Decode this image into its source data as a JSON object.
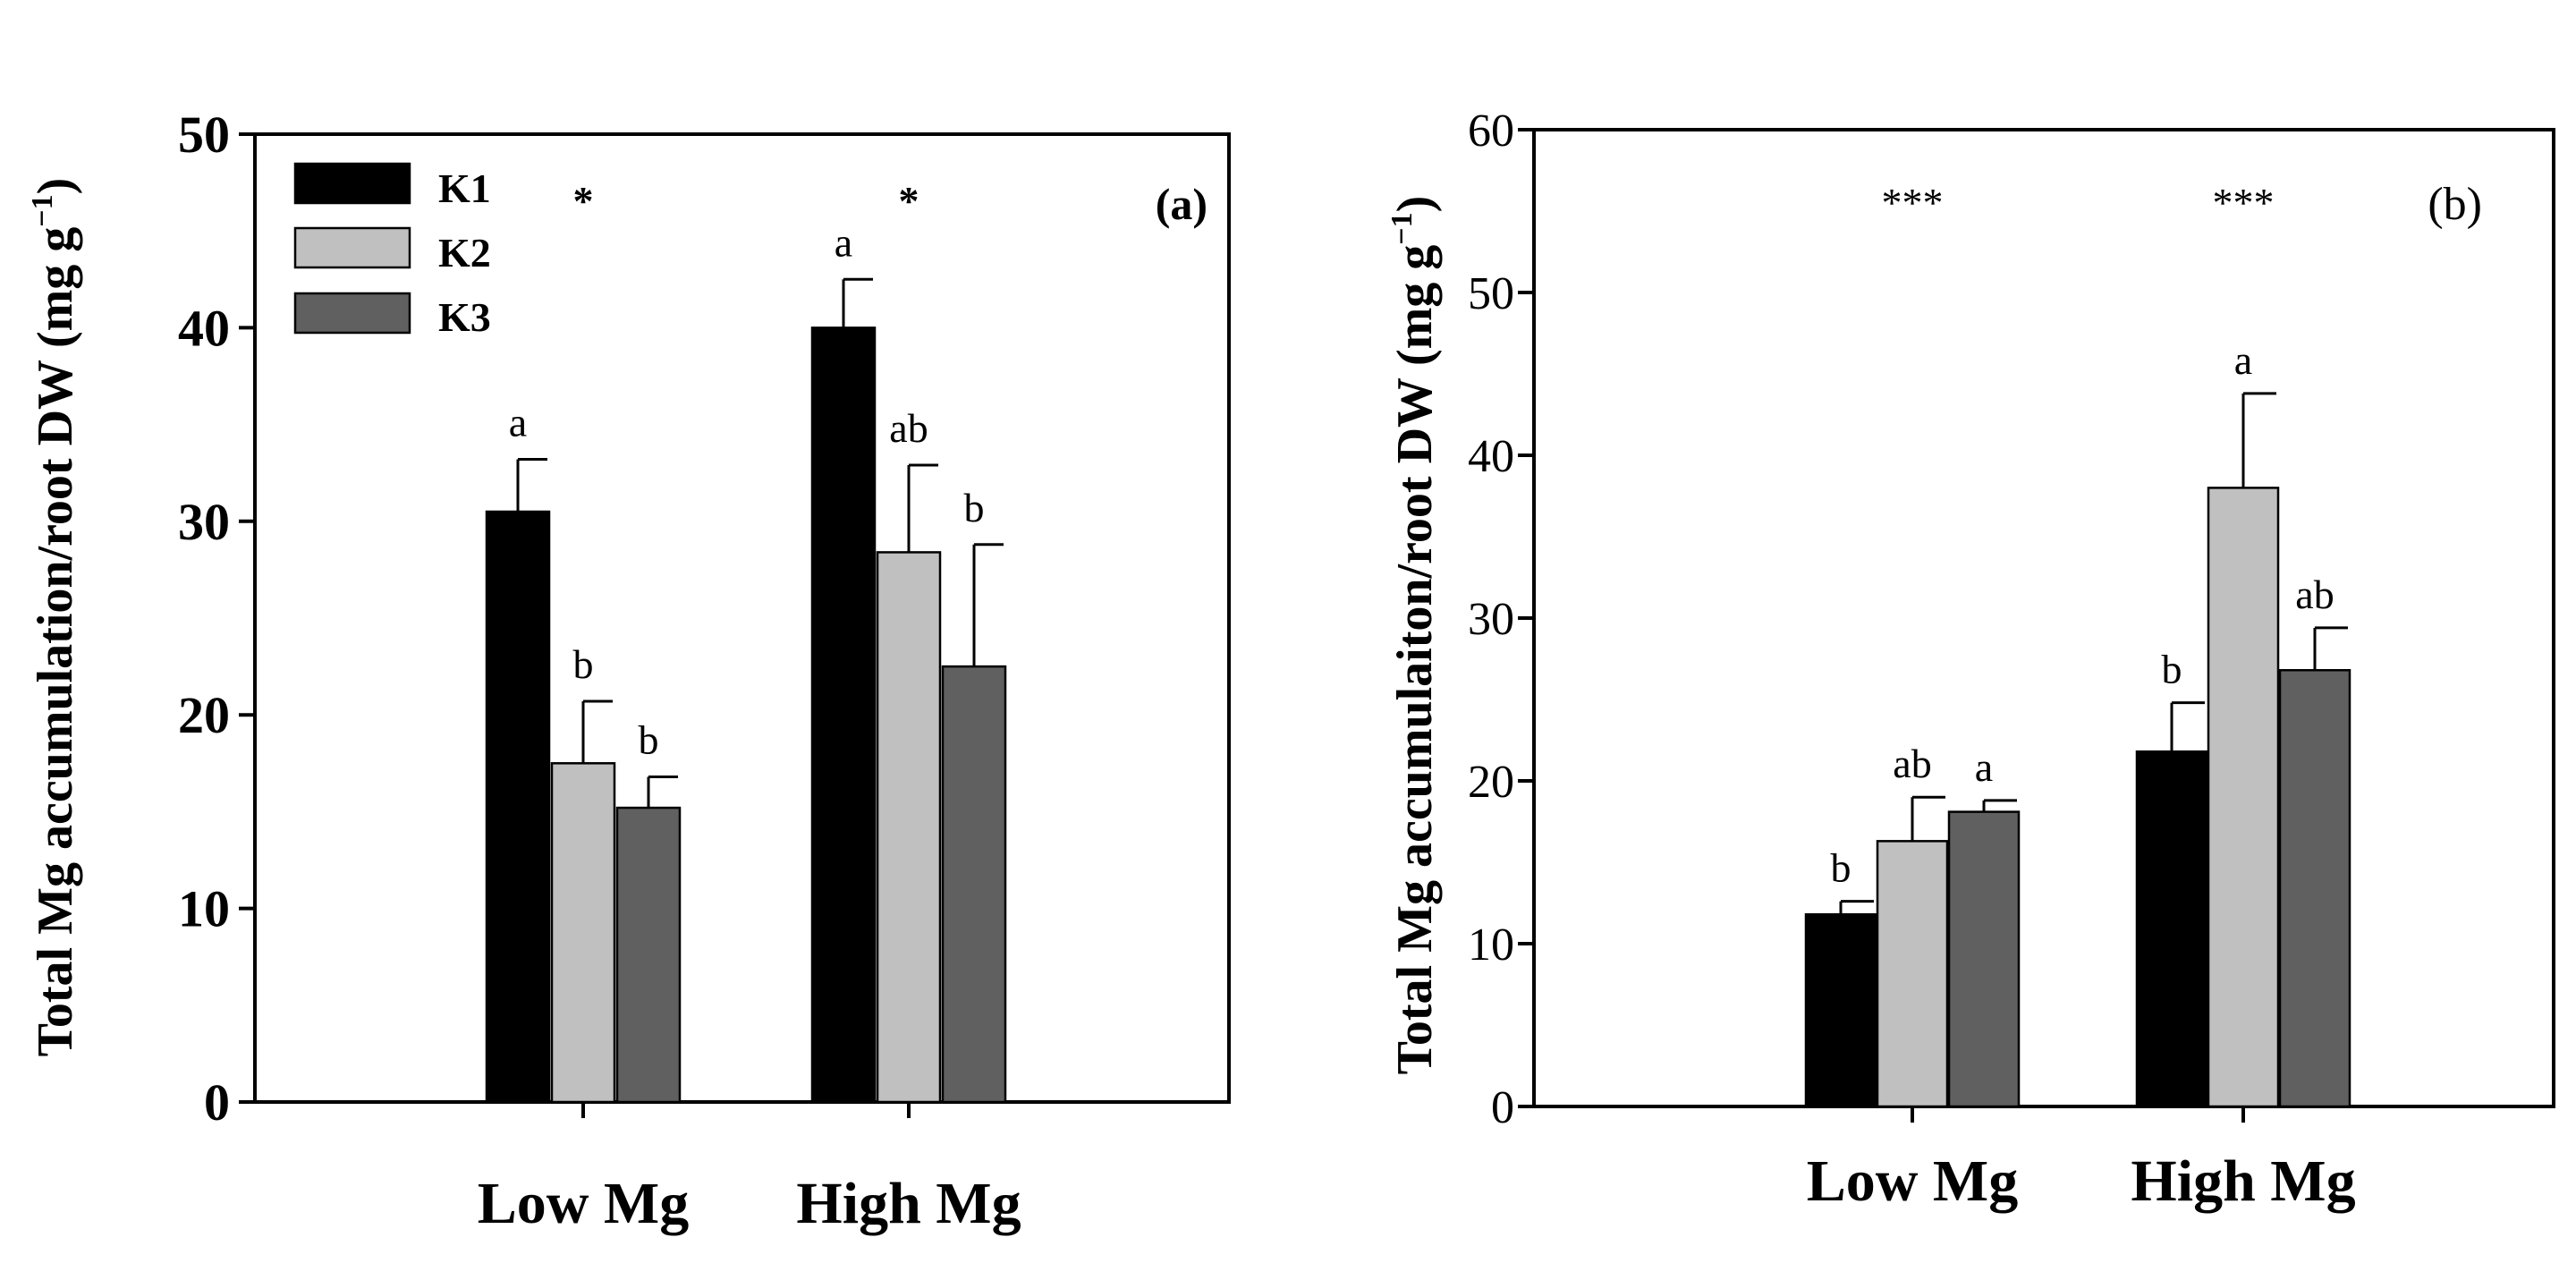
{
  "chart_data": [
    {
      "type": "bar",
      "panel_label": "(a)",
      "ylabel": "Total Mg accumulation/root DW (mg g",
      "ylabel_unit_sup": "−1",
      "ylabel_close": ")",
      "xlabel": "",
      "ylim": [
        0,
        50
      ],
      "yticks": [
        0,
        10,
        20,
        30,
        40,
        50
      ],
      "categories": [
        "Low Mg",
        "High Mg"
      ],
      "legend_position": "top-left",
      "series": [
        {
          "name": "K1",
          "color": "#000000",
          "values": [
            30.5,
            40.0
          ],
          "errors": [
            2.7,
            2.5
          ],
          "letters": [
            "a",
            "a"
          ]
        },
        {
          "name": "K2",
          "color": "#c0c0c0",
          "values": [
            17.5,
            28.4
          ],
          "errors": [
            3.2,
            4.5
          ],
          "letters": [
            "b",
            "ab"
          ]
        },
        {
          "name": "K3",
          "color": "#606060",
          "values": [
            15.2,
            22.5
          ],
          "errors": [
            1.6,
            6.3
          ],
          "letters": [
            "b",
            "b"
          ]
        }
      ],
      "significance": [
        "*",
        "*"
      ]
    },
    {
      "type": "bar",
      "panel_label": "(b)",
      "ylabel": "Total Mg accumulaiton/root DW (mg g",
      "ylabel_unit_sup": "−1",
      "ylabel_close": ")",
      "xlabel": "",
      "ylim": [
        0,
        60
      ],
      "yticks": [
        0,
        10,
        20,
        30,
        40,
        50,
        60
      ],
      "categories": [
        "Low Mg",
        "High Mg"
      ],
      "series": [
        {
          "name": "K1",
          "color": "#000000",
          "values": [
            11.8,
            21.8
          ],
          "errors": [
            0.8,
            3.0
          ],
          "letters": [
            "b",
            "b"
          ]
        },
        {
          "name": "K2",
          "color": "#c0c0c0",
          "values": [
            16.3,
            38.0
          ],
          "errors": [
            2.7,
            5.8
          ],
          "letters": [
            "ab",
            "a"
          ]
        },
        {
          "name": "K3",
          "color": "#606060",
          "values": [
            18.1,
            26.8
          ],
          "errors": [
            0.7,
            2.6
          ],
          "letters": [
            "a",
            "ab"
          ]
        }
      ],
      "significance": [
        "***",
        "***"
      ]
    }
  ]
}
